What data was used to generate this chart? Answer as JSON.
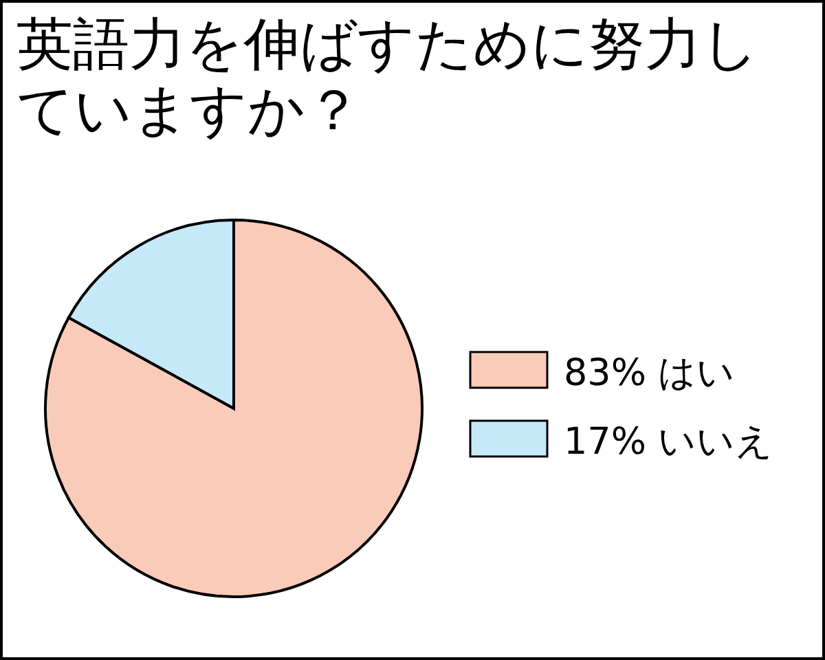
{
  "chart_data": {
    "type": "pie",
    "title": "英語力を伸ばすために努力していますか？",
    "categories": [
      "はい",
      "いいえ"
    ],
    "values": [
      83,
      17
    ],
    "value_labels": [
      "83%",
      "17%"
    ],
    "colors": [
      "#fbcbb9",
      "#c6e9f9"
    ],
    "legend": "right"
  }
}
